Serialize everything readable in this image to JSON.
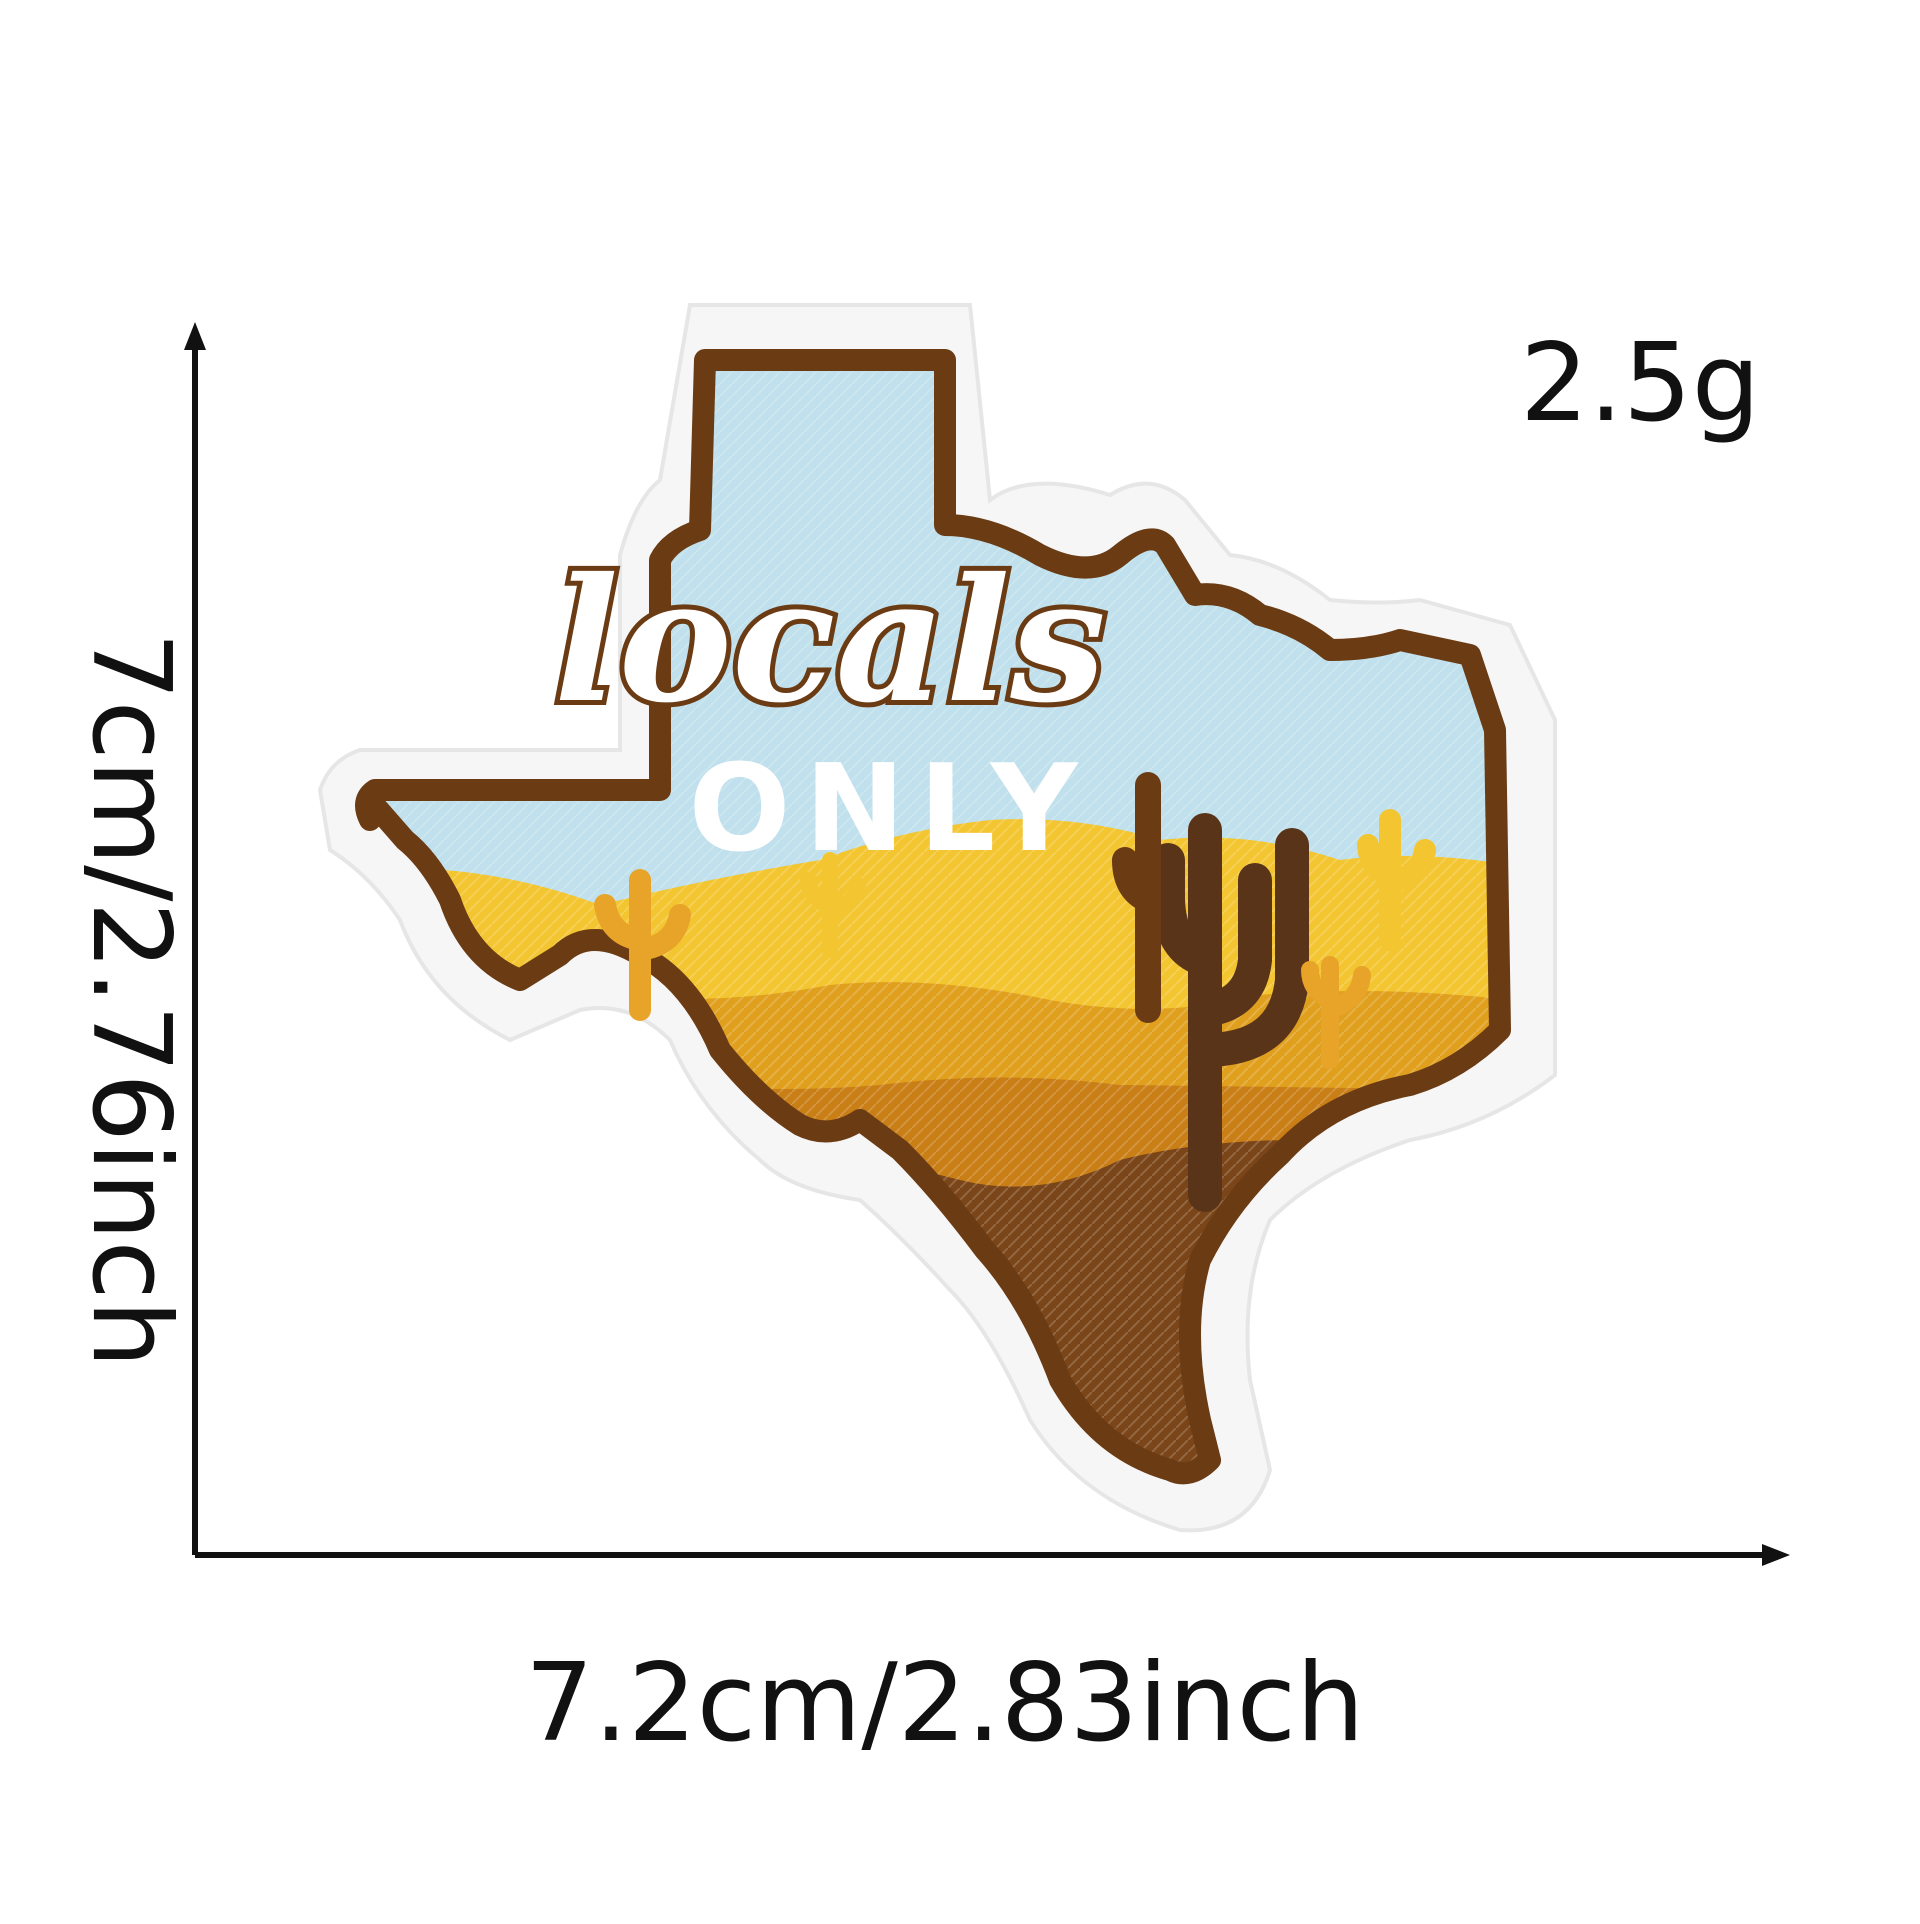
{
  "labels": {
    "weight": "2.5g",
    "width": "7.2cm/2.83inch",
    "height": "7cm/2.76inch"
  },
  "patch": {
    "text_script": "locals",
    "text_block": "ONLY"
  },
  "colors": {
    "felt_edge": "#f6f6f6",
    "outline": "#6b3b14",
    "sky": "#bfe0ec",
    "sand_light": "#f3c531",
    "sand_mid": "#e0a01e",
    "sand_dark": "#c97e16",
    "earth": "#7a4518",
    "cactus_dark": "#5a3418",
    "cactus_light": "#e8a428",
    "lettering": "#ffffff"
  }
}
